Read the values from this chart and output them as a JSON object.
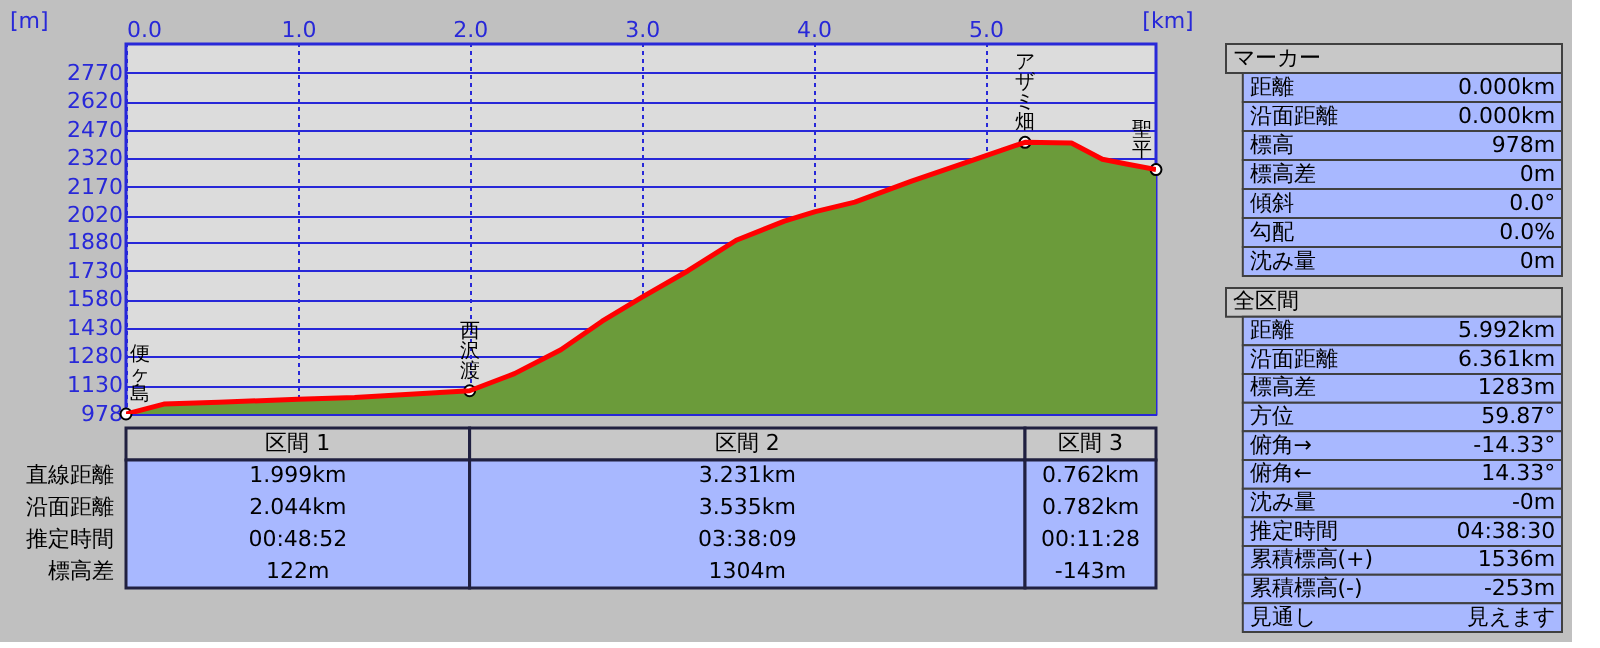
{
  "chart_data": [
    {
      "type": "area",
      "xlabel": "[km]",
      "ylabel": "[m]",
      "xlim": [
        0,
        5.992
      ],
      "ylim": [
        978,
        2920
      ],
      "xticks": [
        {
          "value": 0,
          "label": "0.0"
        },
        {
          "value": 1,
          "label": "1.0"
        },
        {
          "value": 2,
          "label": "2.0"
        },
        {
          "value": 3,
          "label": "3.0"
        },
        {
          "value": 4,
          "label": "4.0"
        },
        {
          "value": 5,
          "label": "5.0"
        }
      ],
      "yticks": [
        978,
        1130,
        1280,
        1430,
        1580,
        1730,
        1880,
        2020,
        2170,
        2320,
        2470,
        2620,
        2770
      ],
      "grid": true,
      "series": [
        {
          "type": "area",
          "color": "#6b9b3a",
          "x": [
            0,
            0.22,
            0.54,
            1.0,
            1.33,
            1.999,
            2.26,
            2.53,
            2.77,
            3.0,
            3.27,
            3.55,
            3.83,
            4.01,
            4.24,
            4.57,
            4.94,
            5.23,
            5.5,
            5.68,
            5.82,
            5.992
          ],
          "values": [
            978,
            1030,
            1040,
            1055,
            1065,
            1100,
            1190,
            1315,
            1465,
            1590,
            1730,
            1890,
            1990,
            2040,
            2090,
            2200,
            2315,
            2404,
            2400,
            2315,
            2290,
            2261
          ]
        },
        {
          "type": "line",
          "color": "#ff0000",
          "x": [
            0,
            0.22,
            0.54,
            1.0,
            1.33,
            1.999,
            2.26,
            2.53,
            2.77,
            3.0,
            3.27,
            3.55,
            3.83,
            4.01,
            4.24,
            4.57,
            4.94,
            5.23,
            5.5,
            5.68,
            5.82,
            5.992
          ],
          "values": [
            978,
            1030,
            1040,
            1055,
            1065,
            1100,
            1190,
            1315,
            1465,
            1590,
            1730,
            1890,
            1990,
            2040,
            2090,
            2200,
            2315,
            2404,
            2400,
            2315,
            2290,
            2261
          ]
        }
      ],
      "annotations": [
        {
          "text": "便ヶ島",
          "x": 0,
          "y": 978
        },
        {
          "text": "西沢渡",
          "x": 1.999,
          "y": 1100
        },
        {
          "text": "アザミ畑",
          "x": 5.23,
          "y": 2404
        },
        {
          "text": "聖平",
          "x": 5.992,
          "y": 2261
        },
        "区間 1",
        "区間 2",
        "区間 3",
        "直線距離",
        "沿面距離",
        "推定時間",
        "標高差",
        "1.999km",
        "3.231km",
        "0.762km",
        "2.044km",
        "3.535km",
        "0.782km",
        "00:48:52",
        "03:38:09",
        "00:11:28",
        "122m",
        "1304m",
        "-143m"
      ]
    },
    {
      "type": "other",
      "title": "マーカー",
      "annotations": [
        "距離",
        "0.000km",
        "沿面距離",
        "0.000km",
        "標高",
        "978m",
        "標高差",
        "0m",
        "傾斜",
        "0.0°",
        "勾配",
        "0.0%",
        "沈み量",
        "0m"
      ]
    },
    {
      "type": "other",
      "title": "全区間",
      "annotations": [
        "距離",
        "5.992km",
        "沿面距離",
        "6.361km",
        "標高差",
        "1283m",
        "方位",
        "59.87°",
        "俯角→",
        "-14.33°",
        "俯角←",
        "14.33°",
        "沈み量",
        "-0m",
        "推定時間",
        "04:38:30",
        "累積標高(+)",
        "1536m",
        "累積標高(-)",
        "-253m",
        "見通し",
        "見えます"
      ]
    }
  ]
}
